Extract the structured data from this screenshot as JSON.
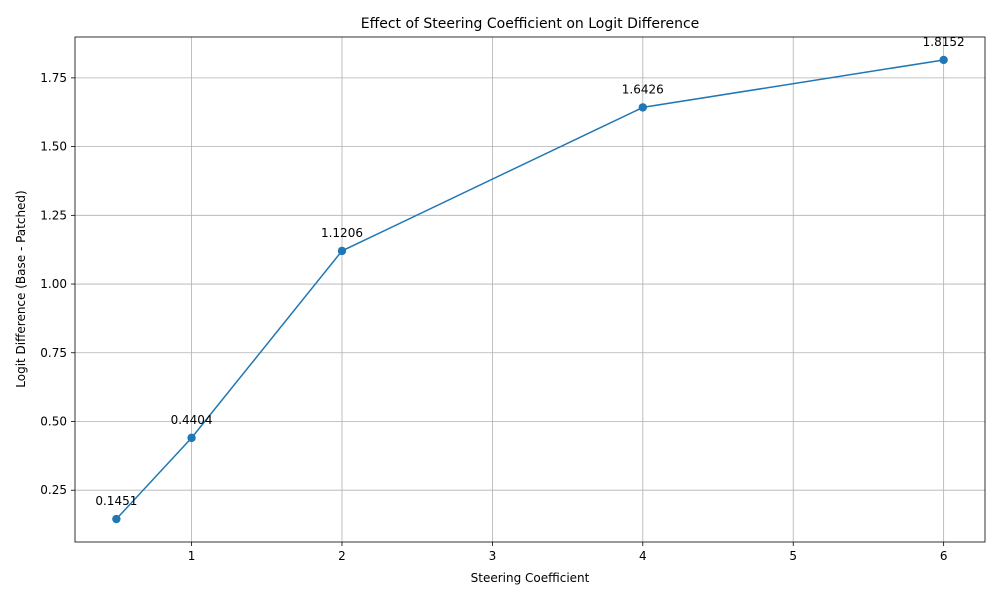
{
  "chart_data": {
    "type": "line",
    "title": "Effect of Steering Coefficient on Logit Difference",
    "xlabel": "Steering Coefficient",
    "ylabel": "Logit Difference (Base - Patched)",
    "x": [
      0.5,
      1,
      2,
      4,
      6
    ],
    "values": [
      0.1451,
      0.4404,
      1.1206,
      1.6426,
      1.8152
    ],
    "data_labels": [
      "0.1451",
      "0.4404",
      "1.1206",
      "1.6426",
      "1.8152"
    ],
    "xlim": [
      0.225,
      6.275
    ],
    "ylim": [
      0.0616,
      1.8987
    ],
    "xticks": [
      1,
      2,
      3,
      4,
      5,
      6
    ],
    "yticks": [
      0.25,
      0.5,
      0.75,
      1.0,
      1.25,
      1.5,
      1.75
    ],
    "xtick_labels": [
      "1",
      "2",
      "3",
      "4",
      "5",
      "6"
    ],
    "ytick_labels": [
      "0.25",
      "0.50",
      "0.75",
      "1.00",
      "1.25",
      "1.50",
      "1.75"
    ],
    "grid": true,
    "line_color": "#1f77b4",
    "marker": "circle"
  }
}
